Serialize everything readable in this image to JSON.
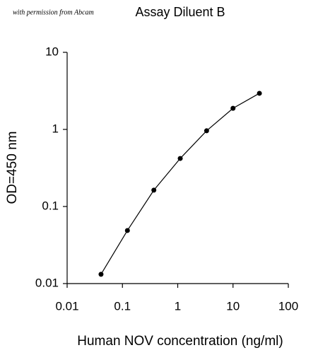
{
  "chart_data": {
    "type": "line",
    "watermark": "with permission from Abcam",
    "title": "Assay Diluent B",
    "x_label": "Human NOV concentration (ng/ml)",
    "y_label": "OD=450 nm",
    "x": [
      0.041,
      0.123,
      0.37,
      1.11,
      3.33,
      10,
      30
    ],
    "series": [
      {
        "color": "#000000",
        "values": [
          0.0132,
          0.0488,
          0.163,
          0.42,
          0.96,
          1.88,
          2.94
        ]
      }
    ],
    "xlim": [
      0.01,
      100
    ],
    "ylim": [
      0.01,
      10
    ],
    "xticks": [
      0.01,
      0.1,
      1,
      10,
      100
    ],
    "yticks": [
      0.01,
      0.1,
      1,
      10
    ],
    "xscale": "log",
    "yscale": "log",
    "grid": false
  }
}
